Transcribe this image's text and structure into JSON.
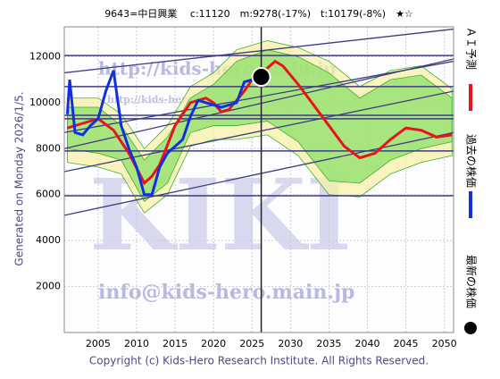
{
  "chart_data": {
    "type": "line",
    "title": "9643=中日興業　 c:11120　m:9278(-17%)　t:10179(-8%)　★☆",
    "y_label": "Generated on Monday 2026/1/5.",
    "footer": "Copyright (c) Kids-Hero Research Institute. All Rights Reserved.",
    "watermarks": [
      "http://kids-hero.main.jp",
      "http://kids-hero.main.jp/9643",
      "info@kids-hero.main.jp",
      "KIKI"
    ],
    "xlim": [
      2000.6,
      2051.2
    ],
    "ylim": [
      0,
      13300
    ],
    "xticks": [
      2005,
      2010,
      2015,
      2020,
      2025,
      2030,
      2035,
      2040,
      2045,
      2050
    ],
    "yticks": [
      2000,
      4000,
      6000,
      8000,
      10000,
      12000
    ],
    "grid": true,
    "current_x": 2026.2,
    "hlines": [
      5950,
      7900,
      9300,
      9450,
      10700,
      12050
    ],
    "trend_lines": [
      [
        5100,
        8700
      ],
      [
        7000,
        10500
      ],
      [
        8000,
        11900
      ],
      [
        8700,
        11800
      ],
      [
        11300,
        13200
      ]
    ],
    "bands": [
      {
        "color": "#f7f0a8",
        "x": [
          2001,
          2005,
          2008,
          2011,
          2014,
          2017,
          2020,
          2023,
          2027,
          2031,
          2035,
          2039,
          2043,
          2047,
          2051
        ],
        "upper": [
          10200,
          10200,
          9500,
          8000,
          9000,
          10700,
          11300,
          12300,
          12700,
          12400,
          11800,
          10700,
          11400,
          11600,
          10600
        ],
        "lower": [
          7400,
          7200,
          6900,
          5200,
          6000,
          8100,
          8400,
          8400,
          8600,
          7700,
          6000,
          5900,
          6900,
          7400,
          7700
        ]
      },
      {
        "color": "#8ee06a",
        "x": [
          2001,
          2005,
          2008,
          2011,
          2014,
          2017,
          2020,
          2023,
          2027,
          2031,
          2035,
          2039,
          2043,
          2047,
          2051
        ],
        "upper": [
          9800,
          9800,
          9000,
          7500,
          8500,
          10200,
          10800,
          11800,
          12300,
          12000,
          11300,
          10200,
          11000,
          11200,
          10200
        ],
        "lower": [
          8000,
          7800,
          7500,
          5700,
          6500,
          8700,
          9000,
          9000,
          9200,
          8300,
          6600,
          6500,
          7500,
          8000,
          8300
        ]
      }
    ],
    "series": [
      {
        "name": "ＡＩ予測",
        "color": "#e8141c",
        "x": [
          2001,
          2003,
          2005,
          2007,
          2009,
          2011,
          2012,
          2013,
          2015,
          2017,
          2019,
          2020,
          2021,
          2022,
          2024,
          2025,
          2026,
          2027,
          2028,
          2029,
          2031,
          2033,
          2035,
          2037,
          2039,
          2041,
          2043,
          2045,
          2047,
          2049,
          2051
        ],
        "values": [
          8900,
          9100,
          9300,
          8800,
          7800,
          6500,
          6800,
          7300,
          9000,
          10000,
          10200,
          10000,
          9600,
          9700,
          10500,
          11000,
          11200,
          11500,
          11800,
          11600,
          10800,
          9900,
          9000,
          8100,
          7600,
          7800,
          8400,
          8900,
          8800,
          8500,
          8600
        ]
      },
      {
        "name": "過去の株価",
        "color": "#1030e0",
        "x": [
          2001,
          2001.3,
          2002,
          2003,
          2004,
          2005,
          2006,
          2007,
          2008,
          2009,
          2010,
          2011,
          2012,
          2013,
          2014,
          2016,
          2017,
          2018,
          2019,
          2020,
          2021,
          2022,
          2023,
          2024,
          2025
        ],
        "values": [
          9500,
          11000,
          8700,
          8600,
          9000,
          9300,
          10500,
          11400,
          9000,
          8000,
          7200,
          6000,
          6000,
          7200,
          7800,
          8400,
          9400,
          10100,
          10000,
          9900,
          9800,
          9900,
          10000,
          10900,
          11000
        ]
      },
      {
        "name": "最新の株価",
        "color": "#000000",
        "x": [
          2026.2
        ],
        "values": [
          11120
        ]
      }
    ]
  }
}
